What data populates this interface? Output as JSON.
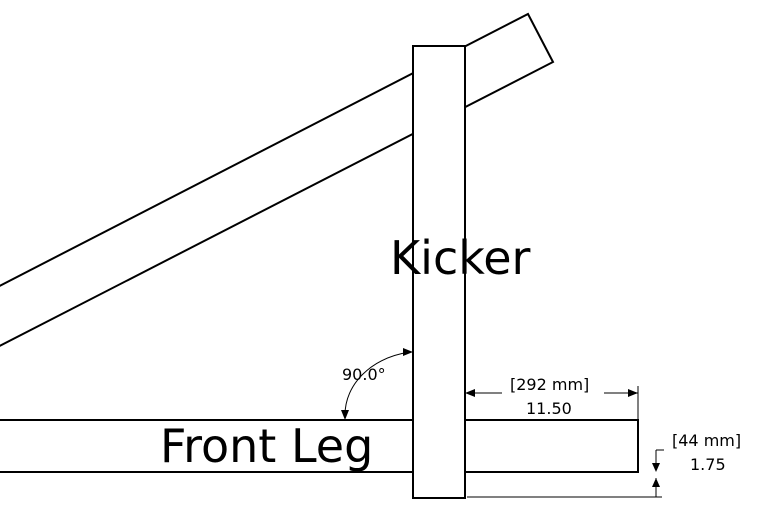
{
  "labels": {
    "kicker": "Kicker",
    "front_leg": "Front Leg"
  },
  "angle": {
    "value": "90.0°"
  },
  "length_dim": {
    "metric": "[292 mm]",
    "imperial": "11.50"
  },
  "thickness_dim": {
    "metric": "[44 mm]",
    "imperial": "1.75"
  }
}
